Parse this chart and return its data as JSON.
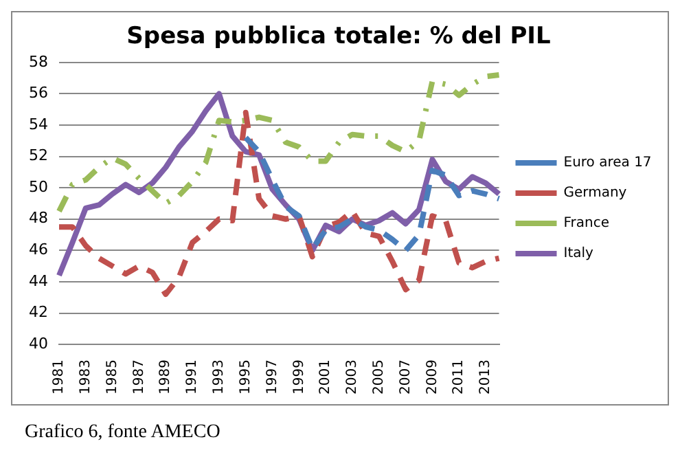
{
  "chart_data": {
    "type": "line",
    "title": "Spesa pubblica totale: % del PIL",
    "categories": [
      "1981",
      null,
      "1983",
      null,
      "1985",
      null,
      "1987",
      null,
      "1989",
      null,
      "1991",
      null,
      "1993",
      null,
      "1995",
      null,
      "1997",
      null,
      "1999",
      null,
      "2001",
      null,
      "2003",
      null,
      "2005",
      null,
      "2007",
      null,
      "2009",
      null,
      "2011",
      null,
      "2013",
      null
    ],
    "series": [
      {
        "name": "Euro area 17",
        "color": "#4a7ebb",
        "line_style": "dashed",
        "values": [
          null,
          null,
          null,
          null,
          null,
          null,
          null,
          null,
          null,
          null,
          null,
          null,
          null,
          null,
          53.2,
          52.3,
          50.5,
          48.8,
          48.2,
          46.1,
          47.3,
          47.5,
          48.0,
          47.5,
          47.3,
          46.7,
          46.0,
          47.0,
          51.1,
          50.8,
          49.5,
          49.8,
          49.6,
          49.3
        ]
      },
      {
        "name": "Germany",
        "color": "#c0504d",
        "line_style": "dashed",
        "values": [
          47.5,
          47.5,
          46.3,
          45.5,
          45.0,
          44.5,
          45.0,
          44.6,
          43.2,
          44.3,
          46.5,
          47.2,
          48.0,
          47.9,
          54.8,
          49.3,
          48.2,
          48.0,
          48.2,
          45.6,
          47.5,
          47.8,
          48.5,
          47.1,
          46.9,
          45.3,
          43.5,
          44.1,
          48.2,
          47.9,
          45.2,
          44.9,
          45.3,
          45.5
        ]
      },
      {
        "name": "France",
        "color": "#9bbb59",
        "line_style": "dotted",
        "values": [
          48.5,
          50.2,
          50.5,
          51.3,
          51.9,
          51.5,
          50.6,
          49.8,
          49.0,
          49.5,
          50.4,
          51.6,
          54.3,
          54.2,
          54.3,
          54.5,
          54.3,
          52.9,
          52.6,
          51.7,
          51.7,
          52.9,
          53.4,
          53.3,
          53.3,
          52.7,
          52.3,
          53.0,
          56.8,
          56.6,
          55.9,
          56.6,
          57.1,
          57.2
        ]
      },
      {
        "name": "Italy",
        "color": "#7f5fa9",
        "line_style": "solid",
        "values": [
          44.4,
          46.5,
          48.7,
          48.9,
          49.6,
          50.2,
          49.7,
          50.3,
          51.3,
          52.6,
          53.6,
          54.9,
          56.0,
          53.3,
          52.3,
          52.1,
          49.9,
          48.9,
          48.0,
          46.0,
          47.6,
          47.2,
          48.0,
          47.6,
          47.9,
          48.4,
          47.7,
          48.6,
          51.8,
          50.4,
          49.9,
          50.7,
          50.3,
          49.6
        ]
      }
    ],
    "ylim": [
      40,
      58
    ],
    "yticks": [
      40,
      42,
      44,
      46,
      48,
      50,
      52,
      54,
      56,
      58
    ],
    "grid": "y",
    "legend": "right",
    "marker": "none",
    "annotations": [
      "Grafico 6, fonte AMECO"
    ]
  }
}
